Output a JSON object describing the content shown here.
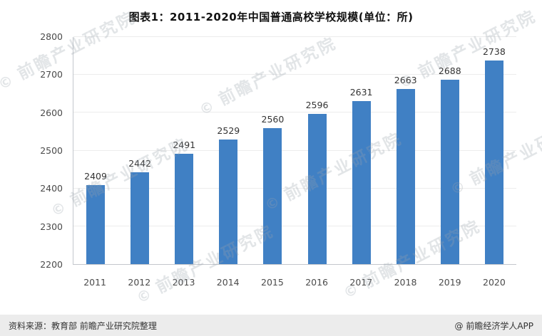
{
  "title": "图表1：2011-2020年中国普通高校学校规模(单位：所)",
  "chart_data": {
    "type": "bar",
    "title": "图表1：2011-2020年中国普通高校学校规模(单位：所)",
    "categories": [
      "2011",
      "2012",
      "2013",
      "2014",
      "2015",
      "2016",
      "2017",
      "2018",
      "2019",
      "2020"
    ],
    "values": [
      2409,
      2442,
      2491,
      2529,
      2560,
      2596,
      2631,
      2663,
      2688,
      2738
    ],
    "xlabel": "",
    "ylabel": "",
    "ylim": [
      2200,
      2800
    ],
    "ytick_step": 100,
    "bar_color": "#4080c4",
    "grid": true,
    "legend": "none"
  },
  "watermark": {
    "mark": "©",
    "text": "前瞻产业研究院"
  },
  "footer": {
    "source": "资料来源：教育部 前瞻产业研究院整理",
    "brand": "@ 前瞻经济学人APP"
  }
}
